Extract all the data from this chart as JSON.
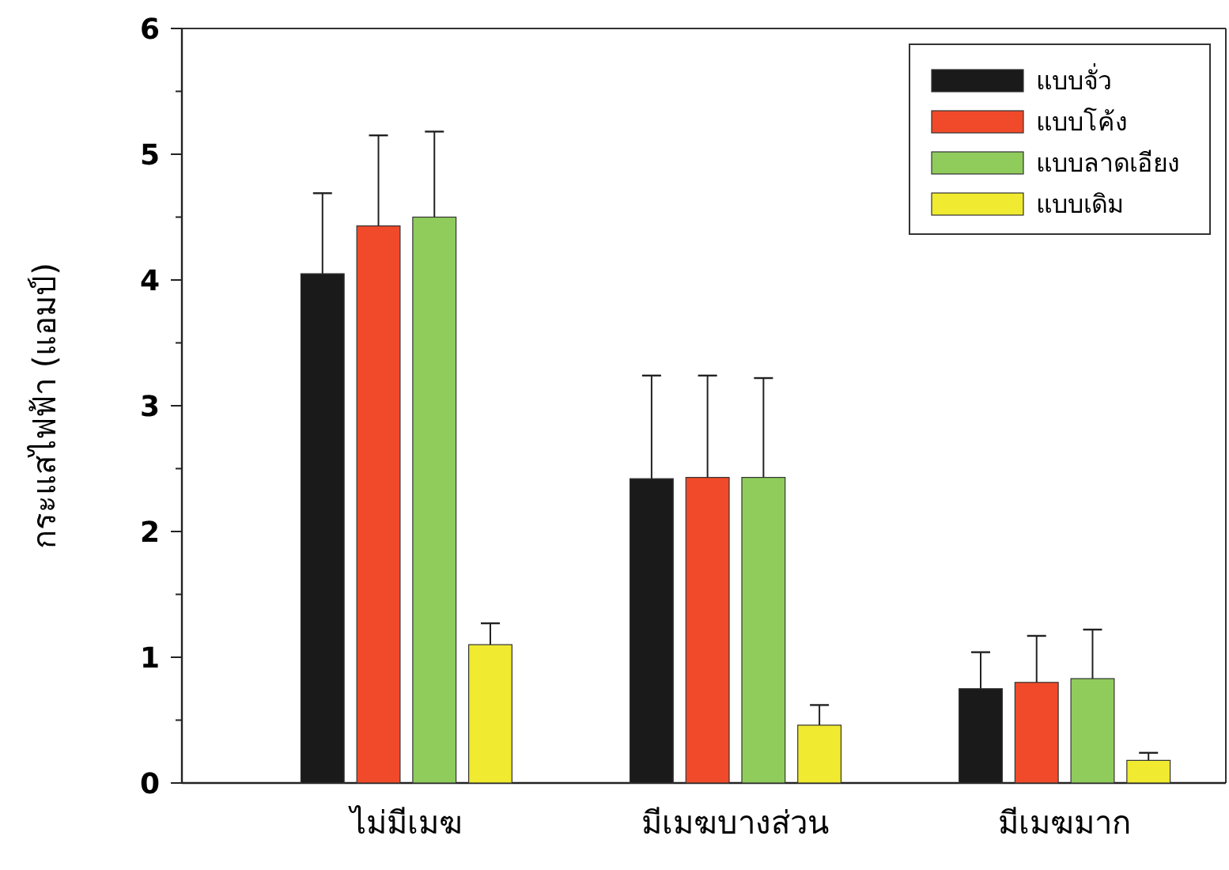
{
  "chart_data": {
    "type": "bar",
    "ylabel": "กระแสไฟฟ้า (แอมป์)",
    "categories": [
      "ไม่มีเมฆ",
      "มีเมฆบางส่วน",
      "มีเมฆมาก"
    ],
    "series": [
      {
        "name": "แบบจั่ว",
        "color": "#1a1a1a",
        "values": [
          4.05,
          2.42,
          0.75
        ],
        "errors": [
          [
            4.05,
            4.69
          ],
          [
            2.42,
            3.24
          ],
          [
            0.75,
            1.04
          ]
        ]
      },
      {
        "name": "แบบโค้ง",
        "color": "#f04a2a",
        "values": [
          4.43,
          2.43,
          0.8
        ],
        "errors": [
          [
            4.43,
            5.15
          ],
          [
            2.43,
            3.24
          ],
          [
            0.8,
            1.17
          ]
        ]
      },
      {
        "name": "แบบลาดเอียง",
        "color": "#8fcc5c",
        "values": [
          4.5,
          2.43,
          0.83
        ],
        "errors": [
          [
            4.5,
            5.18
          ],
          [
            2.43,
            3.22
          ],
          [
            0.83,
            1.22
          ]
        ]
      },
      {
        "name": "แบบเดิม",
        "color": "#f0ea30",
        "values": [
          1.1,
          0.46,
          0.18
        ],
        "errors": [
          [
            1.1,
            1.27
          ],
          [
            0.46,
            0.62
          ],
          [
            0.18,
            0.24
          ]
        ]
      }
    ],
    "ylim": [
      0,
      6
    ],
    "yticks": [
      0,
      {
        "value": 0.5,
        "label": null
      },
      1,
      {
        "value": 1.5,
        "label": null
      },
      2,
      {
        "value": 2.5,
        "label": null
      },
      3,
      {
        "value": 3.5,
        "label": null
      },
      4,
      {
        "value": 4.5,
        "label": null
      },
      5,
      {
        "value": 5.5,
        "label": null
      },
      6
    ],
    "grid": false,
    "legend": "top right"
  }
}
